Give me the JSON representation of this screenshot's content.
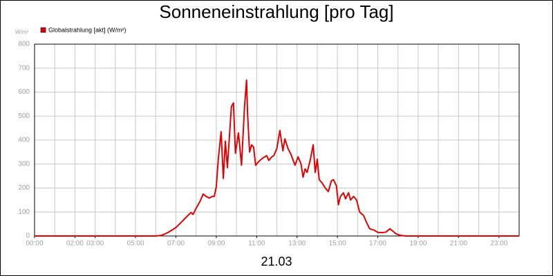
{
  "chart_data": {
    "type": "line",
    "title": "Sonneneinstrahlung [pro Tag]",
    "y_unit": "W/m²",
    "xlabel": "21.03",
    "xlim": [
      0,
      24
    ],
    "xticks": [
      {
        "value": 0,
        "label": "00:00"
      },
      {
        "value": 2,
        "label": "02:00"
      },
      {
        "value": 3,
        "label": "03:00"
      },
      {
        "value": 5,
        "label": "05:00"
      },
      {
        "value": 7,
        "label": "07:00"
      },
      {
        "value": 9,
        "label": "09:00"
      },
      {
        "value": 11,
        "label": "11:00"
      },
      {
        "value": 13,
        "label": "13:00"
      },
      {
        "value": 15,
        "label": "15:00"
      },
      {
        "value": 17,
        "label": "17:00"
      },
      {
        "value": 19,
        "label": "19:00"
      },
      {
        "value": 21,
        "label": "21:00"
      },
      {
        "value": 23,
        "label": "23:00"
      }
    ],
    "x_grid_interval": 1,
    "ylim": [
      0,
      800
    ],
    "yticks": [
      0,
      100,
      200,
      300,
      400,
      500,
      600,
      700,
      800
    ],
    "grid": true,
    "legend": "top-left",
    "x": [
      0,
      6.0,
      6.3,
      6.6,
      7.0,
      7.3,
      7.6,
      7.75,
      7.85,
      8.0,
      8.2,
      8.35,
      8.5,
      8.65,
      8.8,
      8.9,
      9.0,
      9.1,
      9.24,
      9.35,
      9.45,
      9.55,
      9.75,
      9.85,
      9.95,
      10.1,
      10.25,
      10.4,
      10.5,
      10.55,
      10.65,
      10.75,
      10.85,
      10.95,
      11.1,
      11.3,
      11.5,
      11.6,
      11.75,
      11.85,
      12.0,
      12.15,
      12.3,
      12.4,
      12.55,
      12.7,
      12.9,
      13.05,
      13.2,
      13.3,
      13.4,
      13.5,
      13.65,
      13.8,
      13.9,
      14.0,
      14.1,
      14.25,
      14.4,
      14.55,
      14.7,
      14.8,
      14.95,
      15.05,
      15.15,
      15.3,
      15.4,
      15.55,
      15.65,
      15.8,
      15.95,
      16.1,
      16.3,
      16.45,
      16.6,
      16.8,
      17.0,
      17.2,
      17.4,
      17.6,
      17.75,
      17.9,
      18.1,
      18.4,
      24
    ],
    "series": [
      {
        "name": "Globalstrahlung [akt] (W/m²)",
        "color": "#e00000",
        "values": [
          0,
          0,
          3,
          14,
          35,
          60,
          86,
          98,
          90,
          115,
          145,
          175,
          165,
          158,
          165,
          165,
          205,
          320,
          435,
          240,
          395,
          285,
          540,
          555,
          345,
          430,
          295,
          540,
          650,
          510,
          350,
          380,
          370,
          295,
          310,
          325,
          335,
          315,
          330,
          335,
          365,
          440,
          355,
          405,
          365,
          340,
          295,
          330,
          300,
          245,
          280,
          265,
          315,
          380,
          265,
          320,
          235,
          220,
          200,
          185,
          230,
          235,
          210,
          130,
          165,
          180,
          155,
          180,
          150,
          165,
          150,
          100,
          85,
          55,
          30,
          25,
          15,
          14,
          16,
          30,
          20,
          9,
          3,
          0,
          0
        ]
      }
    ]
  }
}
